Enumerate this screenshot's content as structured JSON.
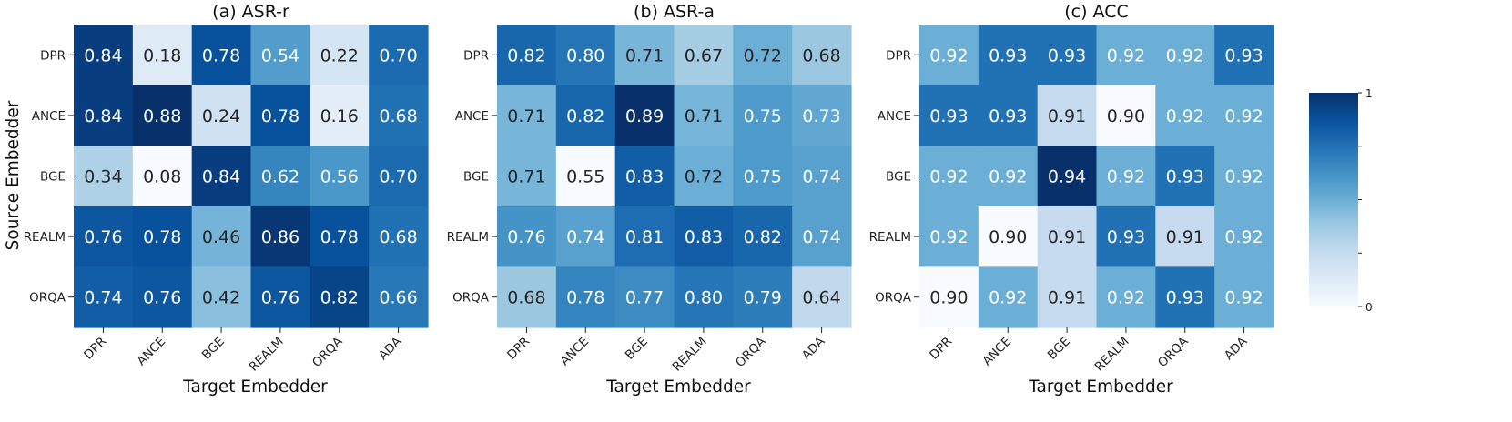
{
  "chart_data": [
    {
      "type": "heatmap",
      "title": "(a) ASR-r",
      "xlabel": "Target Embedder",
      "ylabel": "Source Embedder",
      "x_categories": [
        "DPR",
        "ANCE",
        "BGE",
        "REALM",
        "ORQA",
        "ADA"
      ],
      "y_categories": [
        "DPR",
        "ANCE",
        "BGE",
        "REALM",
        "ORQA"
      ],
      "values": [
        [
          0.84,
          0.18,
          0.78,
          0.54,
          0.22,
          0.7
        ],
        [
          0.84,
          0.88,
          0.24,
          0.78,
          0.16,
          0.68
        ],
        [
          0.34,
          0.08,
          0.84,
          0.62,
          0.56,
          0.7
        ],
        [
          0.76,
          0.78,
          0.46,
          0.86,
          0.78,
          0.68
        ],
        [
          0.74,
          0.76,
          0.42,
          0.76,
          0.82,
          0.66
        ]
      ],
      "labels": [
        [
          "0.84",
          "0.18",
          "0.78",
          "0.54",
          "0.22",
          "0.70"
        ],
        [
          "0.84",
          "0.88",
          "0.24",
          "0.78",
          "0.16",
          "0.68"
        ],
        [
          "0.34",
          "0.08",
          "0.84",
          "0.62",
          "0.56",
          "0.70"
        ],
        [
          "0.76",
          "0.78",
          "0.46",
          "0.86",
          "0.78",
          "0.68"
        ],
        [
          "0.74",
          "0.76",
          "0.42",
          "0.76",
          "0.82",
          "0.66"
        ]
      ]
    },
    {
      "type": "heatmap",
      "title": "(b) ASR-a",
      "xlabel": "Target Embedder",
      "ylabel": "",
      "x_categories": [
        "DPR",
        "ANCE",
        "BGE",
        "REALM",
        "ORQA",
        "ADA"
      ],
      "y_categories": [
        "DPR",
        "ANCE",
        "BGE",
        "REALM",
        "ORQA"
      ],
      "values": [
        [
          0.82,
          0.8,
          0.71,
          0.67,
          0.72,
          0.68
        ],
        [
          0.71,
          0.82,
          0.89,
          0.71,
          0.75,
          0.73
        ],
        [
          0.71,
          0.55,
          0.83,
          0.72,
          0.75,
          0.74
        ],
        [
          0.76,
          0.74,
          0.81,
          0.83,
          0.82,
          0.74
        ],
        [
          0.68,
          0.78,
          0.77,
          0.8,
          0.79,
          0.64
        ]
      ],
      "labels": [
        [
          "0.82",
          "0.80",
          "0.71",
          "0.67",
          "0.72",
          "0.68"
        ],
        [
          "0.71",
          "0.82",
          "0.89",
          "0.71",
          "0.75",
          "0.73"
        ],
        [
          "0.71",
          "0.55",
          "0.83",
          "0.72",
          "0.75",
          "0.74"
        ],
        [
          "0.76",
          "0.74",
          "0.81",
          "0.83",
          "0.82",
          "0.74"
        ],
        [
          "0.68",
          "0.78",
          "0.77",
          "0.80",
          "0.79",
          "0.64"
        ]
      ]
    },
    {
      "type": "heatmap",
      "title": "(c) ACC",
      "xlabel": "Target Embedder",
      "ylabel": "",
      "x_categories": [
        "DPR",
        "ANCE",
        "BGE",
        "REALM",
        "ORQA",
        "ADA"
      ],
      "y_categories": [
        "DPR",
        "ANCE",
        "BGE",
        "REALM",
        "ORQA"
      ],
      "values": [
        [
          0.92,
          0.93,
          0.93,
          0.92,
          0.92,
          0.93
        ],
        [
          0.93,
          0.93,
          0.91,
          0.9,
          0.92,
          0.92
        ],
        [
          0.92,
          0.92,
          0.94,
          0.92,
          0.93,
          0.92
        ],
        [
          0.92,
          0.9,
          0.91,
          0.93,
          0.91,
          0.92
        ],
        [
          0.9,
          0.92,
          0.91,
          0.92,
          0.93,
          0.92
        ]
      ],
      "labels": [
        [
          "0.92",
          "0.93",
          "0.93",
          "0.92",
          "0.92",
          "0.93"
        ],
        [
          "0.93",
          "0.93",
          "0.91",
          "0.90",
          "0.92",
          "0.92"
        ],
        [
          "0.92",
          "0.92",
          "0.94",
          "0.92",
          "0.93",
          "0.92"
        ],
        [
          "0.92",
          "0.90",
          "0.91",
          "0.93",
          "0.91",
          "0.92"
        ],
        [
          "0.90",
          "0.92",
          "0.91",
          "0.92",
          "0.93",
          "0.92"
        ]
      ]
    }
  ],
  "colorbar": {
    "colormap": "Blues",
    "range": [
      0,
      1
    ],
    "tick_labels": {
      "top": "1",
      "bottom": "0"
    }
  },
  "colors": {
    "low": "#f7fbff",
    "mid": "#6baed6",
    "high": "#08306b",
    "text_dark": "#262626",
    "text_light": "#ffffff"
  }
}
